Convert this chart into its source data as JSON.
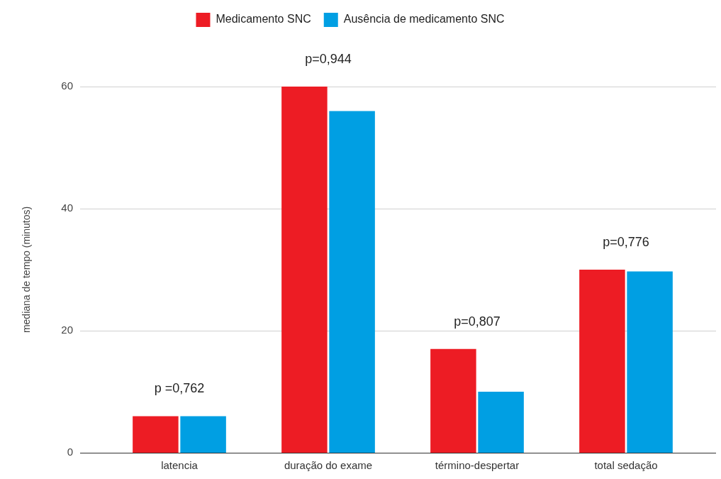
{
  "chart_data": {
    "type": "bar",
    "ylabel": "mediana de tempo (minutos)",
    "categories": [
      "latencia",
      "duração do exame",
      "término-despertar",
      "total sedação"
    ],
    "series": [
      {
        "name": "Medicamento SNC",
        "color": "#ed1c24",
        "values": [
          6,
          60,
          17,
          30
        ]
      },
      {
        "name": "Ausência de medicamento SNC",
        "color": "#009fe3",
        "values": [
          6,
          56,
          10,
          29.7
        ]
      }
    ],
    "ylim": [
      0,
      60
    ],
    "yticks": [
      0,
      20,
      40,
      60
    ],
    "grid": "y",
    "legend": "top",
    "annotations": [
      {
        "text": "p =0,762",
        "x": "latencia",
        "y": 6
      },
      {
        "text": "p=0,944",
        "x": "duração do exame",
        "y": 60
      },
      {
        "text": "p=0,807",
        "x": "término-despertar",
        "y": 17
      },
      {
        "text": "p=0,776",
        "x": "total sedação",
        "y": 30
      }
    ]
  }
}
